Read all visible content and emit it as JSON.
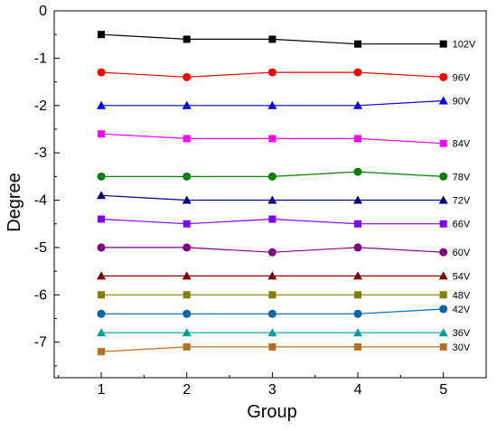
{
  "chart_data": {
    "type": "line",
    "xlabel": "Group",
    "ylabel": "Degree",
    "x": [
      1,
      2,
      3,
      4,
      5
    ],
    "xlim": [
      0.45,
      5.5
    ],
    "ylim": [
      -7.75,
      0
    ],
    "xticks": [
      "1",
      "2",
      "3",
      "4",
      "5"
    ],
    "yticks": [
      {
        "value": 0,
        "label": "0"
      },
      {
        "value": -1,
        "label": "-1"
      },
      {
        "value": -2,
        "label": "-2"
      },
      {
        "value": -3,
        "label": "-3"
      },
      {
        "value": -4,
        "label": "-4"
      },
      {
        "value": -5,
        "label": "-5"
      },
      {
        "value": -6,
        "label": "-6"
      },
      {
        "value": -7,
        "label": "-7"
      }
    ],
    "grid": false,
    "series": [
      {
        "name": "102V",
        "color": "#000000",
        "marker": "square",
        "values": [
          -0.5,
          -0.6,
          -0.6,
          -0.7,
          -0.7
        ]
      },
      {
        "name": "96V",
        "color": "#ff0000",
        "marker": "circle",
        "values": [
          -1.3,
          -1.4,
          -1.3,
          -1.3,
          -1.4
        ]
      },
      {
        "name": "90V",
        "color": "#0000ff",
        "marker": "triangle",
        "values": [
          -2.0,
          -2.0,
          -2.0,
          -2.0,
          -1.9
        ]
      },
      {
        "name": "84V",
        "color": "#ff00ff",
        "marker": "square",
        "values": [
          -2.6,
          -2.7,
          -2.7,
          -2.7,
          -2.8
        ]
      },
      {
        "name": "78V",
        "color": "#008000",
        "marker": "circle",
        "values": [
          -3.5,
          -3.5,
          -3.5,
          -3.4,
          -3.5
        ]
      },
      {
        "name": "72V",
        "color": "#000080",
        "marker": "triangle",
        "values": [
          -3.9,
          -4.0,
          -4.0,
          -4.0,
          -4.0
        ]
      },
      {
        "name": "66V",
        "color": "#8000ff",
        "marker": "square",
        "values": [
          -4.4,
          -4.5,
          -4.4,
          -4.5,
          -4.5
        ]
      },
      {
        "name": "60V",
        "color": "#800080",
        "marker": "circle",
        "values": [
          -5.0,
          -5.0,
          -5.1,
          -5.0,
          -5.1
        ]
      },
      {
        "name": "54V",
        "color": "#800000",
        "marker": "triangle",
        "values": [
          -5.6,
          -5.6,
          -5.6,
          -5.6,
          -5.6
        ]
      },
      {
        "name": "48V",
        "color": "#808000",
        "marker": "square",
        "values": [
          -6.0,
          -6.0,
          -6.0,
          -6.0,
          -6.0
        ]
      },
      {
        "name": "42V",
        "color": "#0066aa",
        "marker": "circle",
        "values": [
          -6.4,
          -6.4,
          -6.4,
          -6.4,
          -6.3
        ]
      },
      {
        "name": "36V",
        "color": "#00a0a0",
        "marker": "triangle",
        "values": [
          -6.8,
          -6.8,
          -6.8,
          -6.8,
          -6.8
        ]
      },
      {
        "name": "30V",
        "color": "#b86e1e",
        "marker": "square",
        "values": [
          -7.2,
          -7.1,
          -7.1,
          -7.1,
          -7.1
        ]
      }
    ]
  }
}
